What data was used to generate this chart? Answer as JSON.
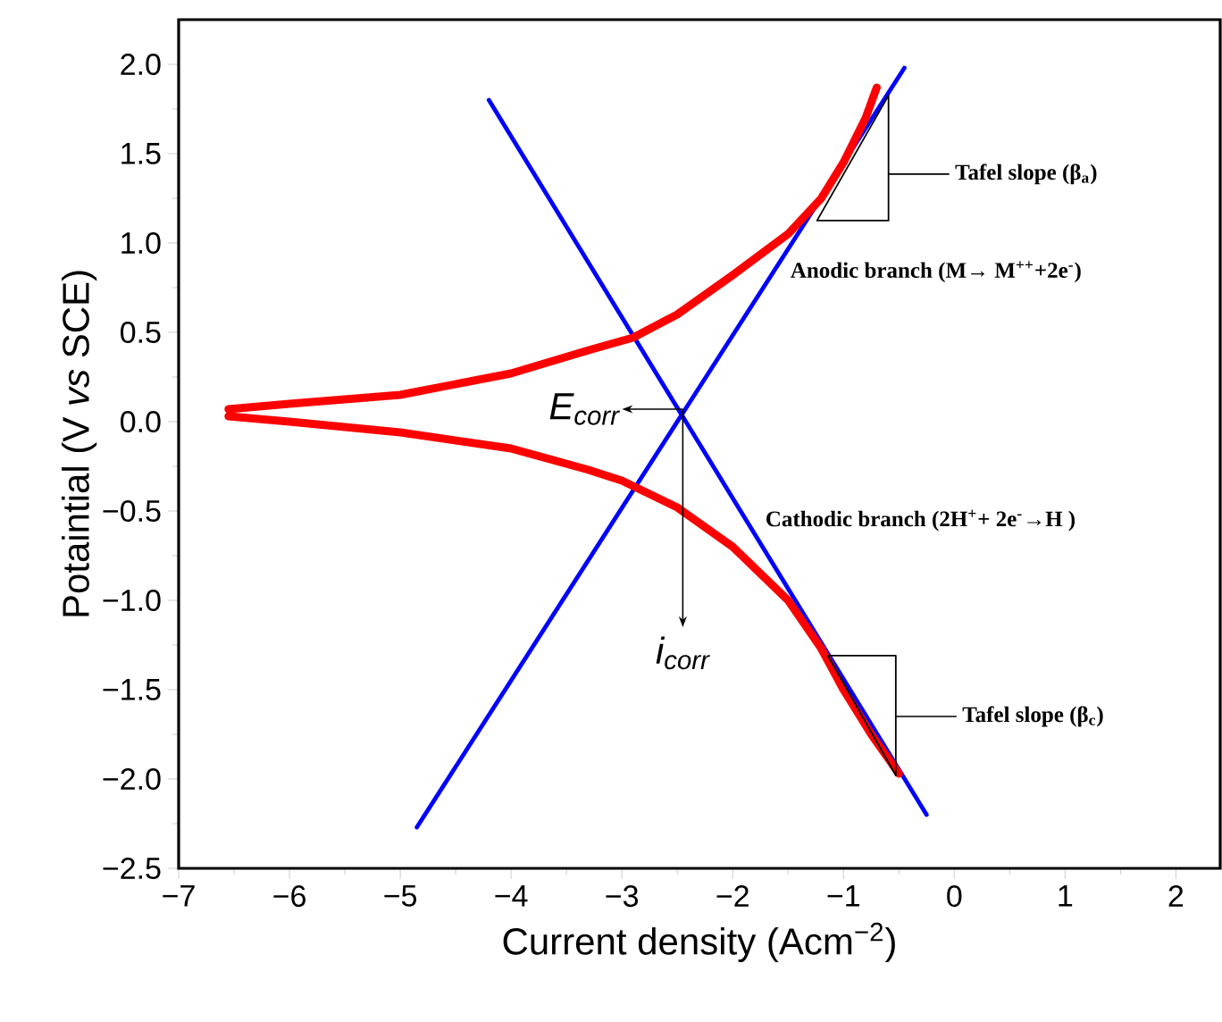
{
  "chart_data": {
    "type": "line",
    "xlabel": "Current density (Acm$^{−2}$)",
    "ylabel": "Potaintial (V *vs* SCE)",
    "xlim": [
      -7,
      2.4
    ],
    "ylim": [
      -2.5,
      2.25
    ],
    "xticks": [
      {
        "value": -7,
        "label": "−7"
      },
      {
        "value": -6,
        "label": "−6"
      },
      {
        "value": -5,
        "label": "−5"
      },
      {
        "value": -4,
        "label": "−4"
      },
      {
        "value": -3,
        "label": "−3"
      },
      {
        "value": -2,
        "label": "−2"
      },
      {
        "value": -1,
        "label": "−1"
      },
      0,
      1,
      2
    ],
    "yticks": [
      {
        "value": -2.5,
        "label": "−2.5"
      },
      {
        "value": -2,
        "label": "−2.0"
      },
      {
        "value": -1.5,
        "label": "−1.5"
      },
      {
        "value": -1,
        "label": "−1.0"
      },
      {
        "value": -0.5,
        "label": "−0.5"
      },
      {
        "value": 0,
        "label": "0.0"
      },
      {
        "value": 0.5,
        "label": "0.5"
      },
      {
        "value": 1,
        "label": "1.0"
      },
      {
        "value": 1.5,
        "label": "1.5"
      },
      {
        "value": 2,
        "label": "2.0"
      }
    ],
    "grid": false,
    "marker": "none",
    "line_style": "solid",
    "series": [
      {
        "color": "#0000ff",
        "x": [
          -4.2,
          -0.25
        ],
        "values": [
          1.8,
          -2.2
        ]
      },
      {
        "color": "#0000ff",
        "x": [
          -4.85,
          -0.45
        ],
        "values": [
          -2.27,
          1.98
        ]
      },
      {
        "color": "#ff0000",
        "x": [
          -6.55,
          -6,
          -5,
          -4,
          -3.3,
          -2.9,
          -2.5,
          -2,
          -1.5,
          -1.2,
          -1,
          -0.8,
          -0.7
        ],
        "values": [
          0.07,
          0.1,
          0.15,
          0.27,
          0.4,
          0.47,
          0.6,
          0.82,
          1.05,
          1.25,
          1.45,
          1.7,
          1.87
        ]
      },
      {
        "color": "#ff0000",
        "x": [
          -6.55,
          -6,
          -5,
          -4,
          -3.3,
          -3,
          -2.5,
          -2,
          -1.5,
          -1.2,
          -1,
          -0.75,
          -0.5
        ],
        "values": [
          0.03,
          0,
          -0.06,
          -0.15,
          -0.27,
          -0.33,
          -0.48,
          -0.7,
          -1.0,
          -1.27,
          -1.5,
          -1.75,
          -1.97
        ]
      }
    ],
    "annotations": [
      "Tafel slope (β$_{a}$)",
      "Anodic branch (M→ M$^{++}$+2e$^{-}$)",
      {
        "text": "*E*$_{corr}$",
        "x": -2.45,
        "y": 0.07
      },
      "Cathodic branch (2H$^{+}$+ 2e$^{-}$→H )",
      {
        "text": "*i*$_{corr}$",
        "x": -2.45,
        "y": 0.07
      },
      "Tafel slope (β$_{c}$)"
    ]
  }
}
